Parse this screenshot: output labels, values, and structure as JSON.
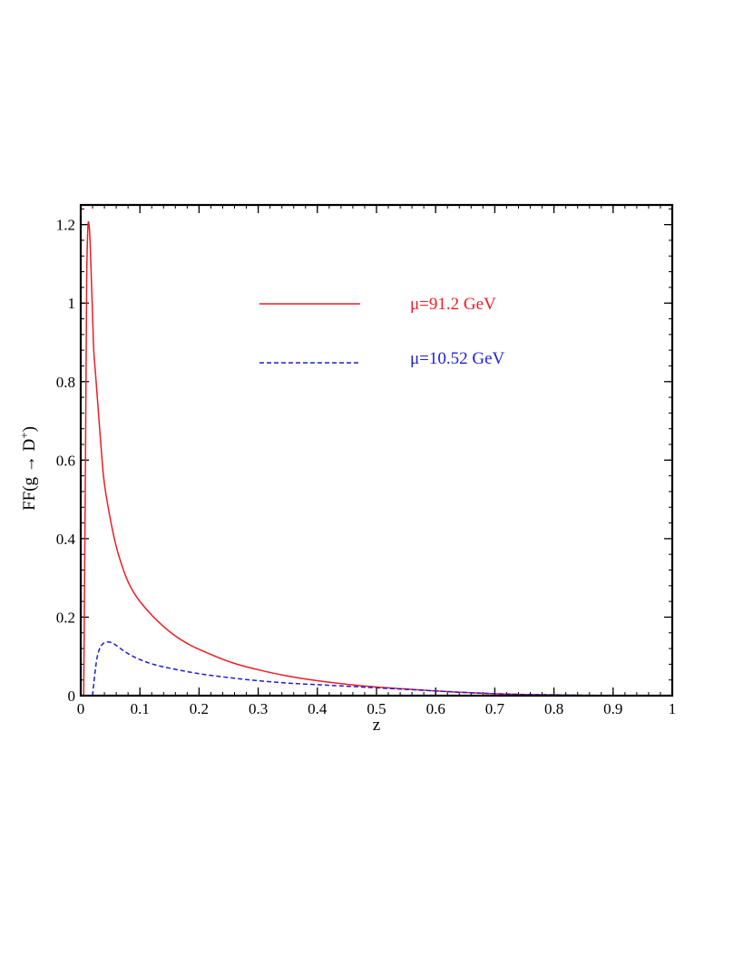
{
  "chart_data": {
    "type": "line",
    "xlabel": "z",
    "ylabel": "FF(g → D",
    "ylabel_sup": "+",
    "ylabel_close": ")",
    "xlim": [
      0,
      1
    ],
    "ylim": [
      0,
      1.25
    ],
    "x_ticks": [
      0,
      0.1,
      0.2,
      0.3,
      0.4,
      0.5,
      0.6,
      0.7,
      0.8,
      0.9,
      1
    ],
    "x_tick_labels": [
      "0",
      "0.1",
      "0.2",
      "0.3",
      "0.4",
      "0.5",
      "0.6",
      "0.7",
      "0.8",
      "0.9",
      "1"
    ],
    "y_ticks": [
      0,
      0.2,
      0.4,
      0.6,
      0.8,
      1,
      1.2
    ],
    "y_tick_labels": [
      "0",
      "0.2",
      "0.4",
      "0.6",
      "0.8",
      "1",
      "1.2"
    ],
    "x_minor_step": 0.02,
    "y_minor_step": 0.04,
    "grid": false,
    "legend_position": "upper-right",
    "series": [
      {
        "name": "μ=91.2 GeV",
        "color": "#ee1c24",
        "dash": "solid",
        "x": [
          0.005,
          0.008,
          0.01,
          0.012,
          0.014,
          0.016,
          0.018,
          0.02,
          0.022,
          0.025,
          0.03,
          0.035,
          0.04,
          0.05,
          0.06,
          0.07,
          0.08,
          0.09,
          0.1,
          0.12,
          0.14,
          0.16,
          0.18,
          0.2,
          0.25,
          0.3,
          0.35,
          0.4,
          0.45,
          0.5,
          0.55,
          0.6,
          0.65,
          0.7,
          0.75,
          0.8,
          0.85,
          0.9,
          0.95,
          1.0
        ],
        "y": [
          0.0,
          0.6,
          1.05,
          1.19,
          1.2,
          1.15,
          1.06,
          0.97,
          0.88,
          0.82,
          0.72,
          0.62,
          0.54,
          0.45,
          0.38,
          0.33,
          0.29,
          0.262,
          0.24,
          0.205,
          0.176,
          0.152,
          0.133,
          0.118,
          0.087,
          0.066,
          0.05,
          0.038,
          0.029,
          0.022,
          0.017,
          0.012,
          0.008,
          0.005,
          0.003,
          0.002,
          0.001,
          0.0005,
          0.0001,
          0.0
        ]
      },
      {
        "name": "μ=10.52 GeV",
        "color": "#1f1fd6",
        "dash": "dashed",
        "x": [
          0.02,
          0.022,
          0.025,
          0.028,
          0.032,
          0.036,
          0.04,
          0.045,
          0.05,
          0.055,
          0.06,
          0.07,
          0.08,
          0.09,
          0.1,
          0.12,
          0.15,
          0.2,
          0.25,
          0.3,
          0.35,
          0.4,
          0.45,
          0.5,
          0.55,
          0.6,
          0.65,
          0.7,
          0.75,
          0.8,
          0.85,
          0.9,
          0.95,
          1.0
        ],
        "y": [
          0.0,
          0.03,
          0.07,
          0.1,
          0.12,
          0.13,
          0.135,
          0.137,
          0.136,
          0.133,
          0.128,
          0.117,
          0.107,
          0.099,
          0.092,
          0.081,
          0.07,
          0.056,
          0.046,
          0.038,
          0.032,
          0.028,
          0.024,
          0.02,
          0.016,
          0.012,
          0.008,
          0.005,
          0.003,
          0.002,
          0.001,
          0.0005,
          0.0001,
          0.0
        ]
      }
    ]
  }
}
